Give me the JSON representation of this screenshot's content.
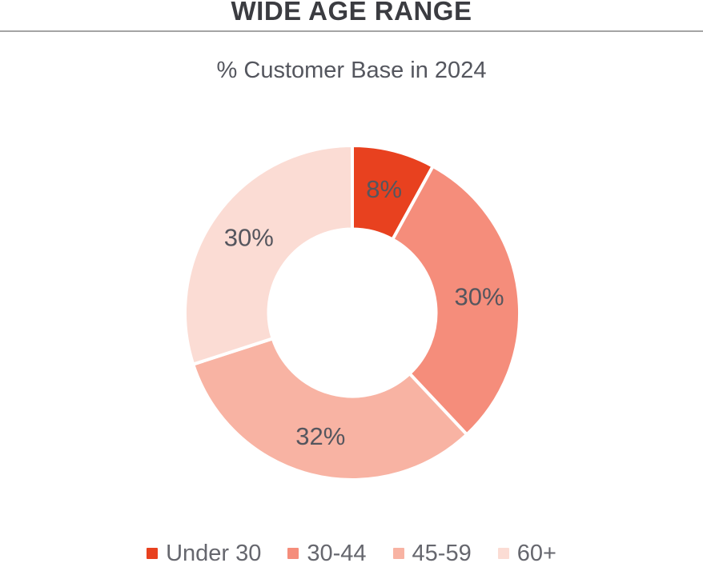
{
  "page": {
    "title": "WIDE AGE RANGE",
    "subtitle": "% Customer Base in 2024"
  },
  "palette": {
    "title_text": "#3b3c41",
    "subtitle_text": "#54565e",
    "slice_label_text": "#55565e",
    "legend_text": "#66676e",
    "divider": "#a4a4a4",
    "background": "#ffffff"
  },
  "chart_data": {
    "type": "pie",
    "subtype": "donut",
    "title": "% Customer Base in 2024",
    "categories": [
      "Under 30",
      "30-44",
      "45-59",
      "60+"
    ],
    "values": [
      8,
      30,
      32,
      30
    ],
    "data_labels": [
      "8%",
      "30%",
      "32%",
      "30%"
    ],
    "colors": [
      "#E8411F",
      "#F58D7B",
      "#F8B3A3",
      "#FBDCD4"
    ],
    "start_angle_deg": 0,
    "direction": "clockwise",
    "inner_radius_ratio": 0.5,
    "slice_gap_stroke": "#FFFFFF",
    "legend_position": "bottom",
    "legend": [
      {
        "label": "Under 30",
        "color": "#E8411F"
      },
      {
        "label": "30-44",
        "color": "#F58D7B"
      },
      {
        "label": "45-59",
        "color": "#F8B3A3"
      },
      {
        "label": "60+",
        "color": "#FBDCD4"
      }
    ]
  }
}
